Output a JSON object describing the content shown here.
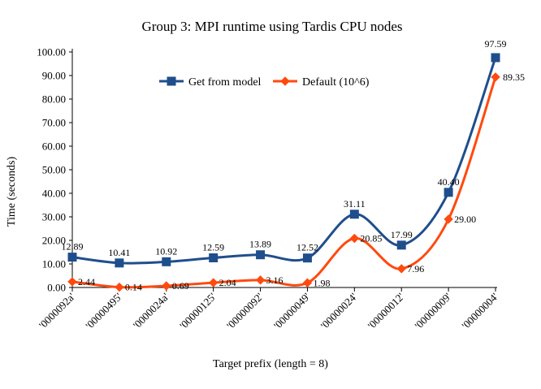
{
  "chart_data": {
    "type": "line",
    "title": "Group 3: MPI runtime using Tardis CPU nodes",
    "xlabel": "Target prefix (length = 8)",
    "ylabel": "Time (seconds)",
    "categories": [
      "'0000092a'",
      "'00000495'",
      "'0000024a'",
      "'00000125'",
      "'00000092'",
      "'00000049'",
      "'00000024'",
      "'00000012'",
      "'00000009'",
      "'00000004'"
    ],
    "ylim": [
      0,
      100
    ],
    "yticks": [
      "0.00",
      "10.00",
      "20.00",
      "30.00",
      "40.00",
      "50.00",
      "60.00",
      "70.00",
      "80.00",
      "90.00",
      "100.00"
    ],
    "grid": false,
    "legend_position": "top-center",
    "series": [
      {
        "name": "Get from model",
        "color": "#1f4e8c",
        "marker": "square",
        "values": [
          12.89,
          10.41,
          10.92,
          12.59,
          13.89,
          12.52,
          31.11,
          17.99,
          40.4,
          97.59
        ],
        "labels": [
          "12.89",
          "10.41",
          "10.92",
          "12.59",
          "13.89",
          "12.52",
          "31.11",
          "17.99",
          "40.40",
          "97.59"
        ]
      },
      {
        "name": "Default (10^6)",
        "color": "#ff4a0f",
        "marker": "diamond",
        "values": [
          2.44,
          0.14,
          0.69,
          2.04,
          3.16,
          1.98,
          20.85,
          7.96,
          29.0,
          89.35
        ],
        "labels": [
          "2.44",
          "0.14",
          "0.69",
          "2.04",
          "3.16",
          "1.98",
          "20.85",
          "7.96",
          "29.00",
          "89.35"
        ]
      }
    ]
  }
}
